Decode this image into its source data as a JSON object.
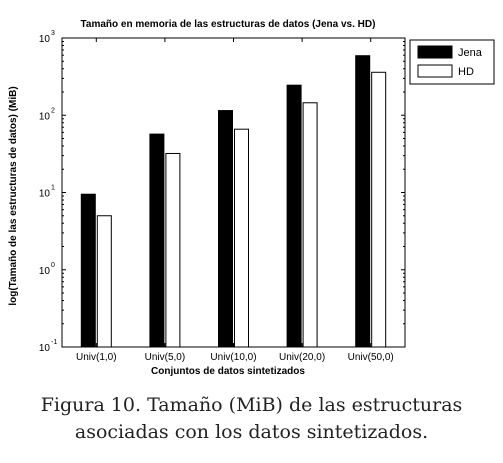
{
  "chart_data": {
    "type": "bar",
    "title": "Tamaño en memoria de las estructuras de datos (Jena vs. HD)",
    "xlabel": "Conjuntos de datos sintetizados",
    "ylabel": "log(Tamaño de las estructuras de datos) (MiB)",
    "yscale": "log",
    "ylim": [
      0.1,
      1000
    ],
    "yticks": [
      {
        "value": 0.1,
        "base": "10",
        "exp": "-1"
      },
      {
        "value": 1,
        "base": "10",
        "exp": "0"
      },
      {
        "value": 10,
        "base": "10",
        "exp": "1"
      },
      {
        "value": 100,
        "base": "10",
        "exp": "2"
      },
      {
        "value": 1000,
        "base": "10",
        "exp": "3"
      }
    ],
    "categories": [
      "Univ(1,0)",
      "Univ(5,0)",
      "Univ(10,0)",
      "Univ(20,0)",
      "Univ(50,0)"
    ],
    "series": [
      {
        "name": "Jena",
        "color": "#000000",
        "values": [
          9.5,
          57,
          115,
          245,
          590
        ]
      },
      {
        "name": "HD",
        "color": "#ffffff",
        "values": [
          5.0,
          32,
          66,
          145,
          360
        ]
      }
    ],
    "legend_position": "top-right",
    "grid": false
  },
  "caption": {
    "line1": "Figura 10. Tamaño (MiB) de las estructuras",
    "line2": "asociadas con los datos sintetizados."
  }
}
